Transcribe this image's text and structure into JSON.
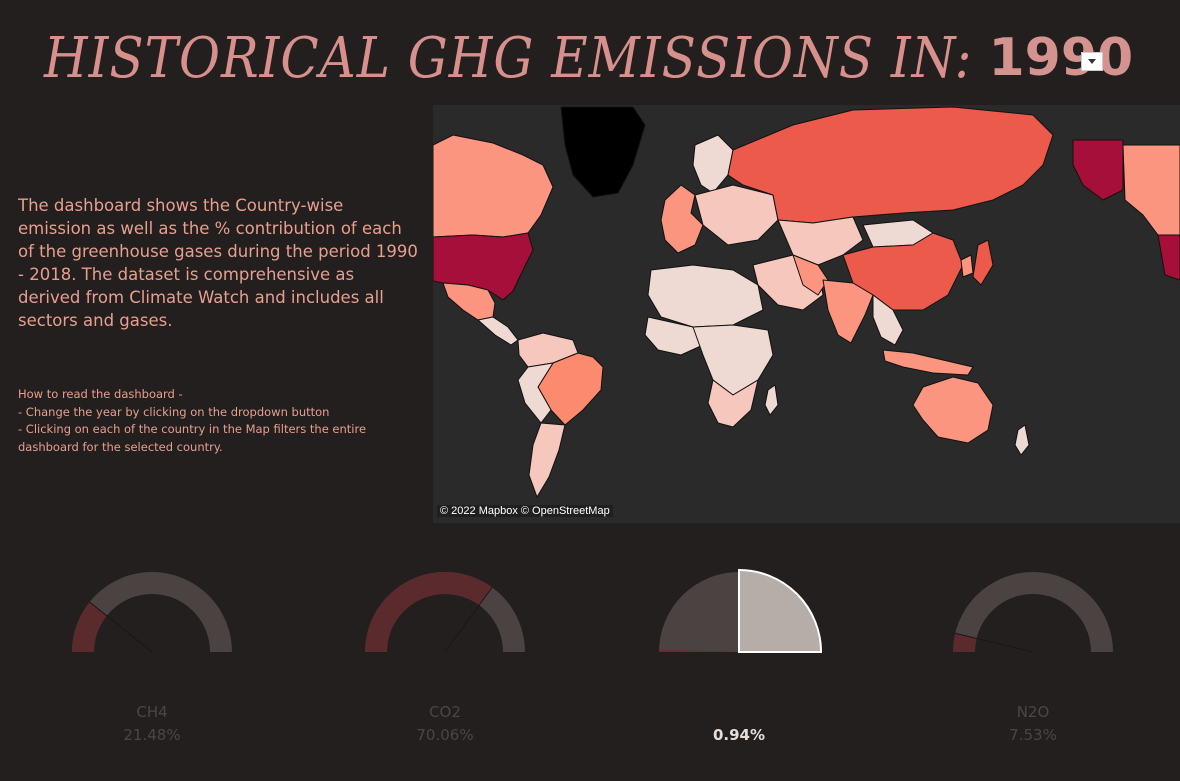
{
  "header": {
    "title_prefix": "HISTORICAL GHG EMISSIONS IN:",
    "year": "1990"
  },
  "dropdown": {
    "icon": "chevron-down-icon"
  },
  "description": "The dashboard shows the Country-wise emission as well as the % contribution of each of the greenhouse gases during the period 1990 - 2018. The dataset is comprehensive as derived from Climate Watch and includes all sectors and gases.",
  "howto": {
    "heading": "How to read the dashboard -",
    "lines": [
      "- Change the year by clicking on the dropdown button",
      "- Clicking on each of the country in the Map filters the entire dashboard for the selected country."
    ]
  },
  "map": {
    "attribution": "© 2022 Mapbox  © OpenStreetMap",
    "colors": {
      "ocean": "#2a2a2a",
      "very_high": "#a50f3a",
      "high": "#ec5a4c",
      "medium": "#fb9580",
      "low": "#f5c7bd",
      "very_low": "#efd9d3",
      "no_data": "#000000"
    }
  },
  "gauges": [
    {
      "name": "CH4",
      "value": "21.48%",
      "share": 21.48,
      "label_visible": true
    },
    {
      "name": "CO2",
      "value": "70.06%",
      "share": 70.06,
      "label_visible": true
    },
    {
      "name": "",
      "value": "0.94%",
      "share": 0.94,
      "label_visible": false
    },
    {
      "name": "N2O",
      "value": "7.53%",
      "share": 7.53,
      "label_visible": true
    }
  ]
}
